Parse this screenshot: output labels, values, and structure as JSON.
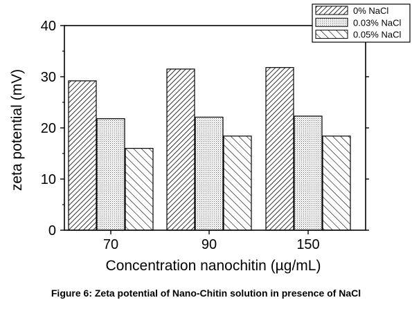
{
  "figure_caption": "Figure 6: Zeta potential of Nano-Chitin solution in presence of NaCl",
  "chart_data": {
    "type": "bar",
    "title": "",
    "xlabel": "Concentration nanochitin (µg/mL)",
    "ylabel": "zeta potential (mV)",
    "categories": [
      "70",
      "90",
      "150"
    ],
    "ylim": [
      0,
      40
    ],
    "yticks": [
      0,
      10,
      20,
      30,
      40
    ],
    "grid": false,
    "legend_position": "top-right",
    "series": [
      {
        "name": "0% NaCl",
        "pattern": "diagonal-forward-dense",
        "values": [
          29.2,
          31.5,
          31.8
        ]
      },
      {
        "name": "0.03% NaCl",
        "pattern": "dotted",
        "values": [
          21.8,
          22.1,
          22.3
        ]
      },
      {
        "name": "0.05% NaCl",
        "pattern": "diagonal-back-sparse",
        "values": [
          16.0,
          18.4,
          18.4
        ]
      }
    ]
  }
}
